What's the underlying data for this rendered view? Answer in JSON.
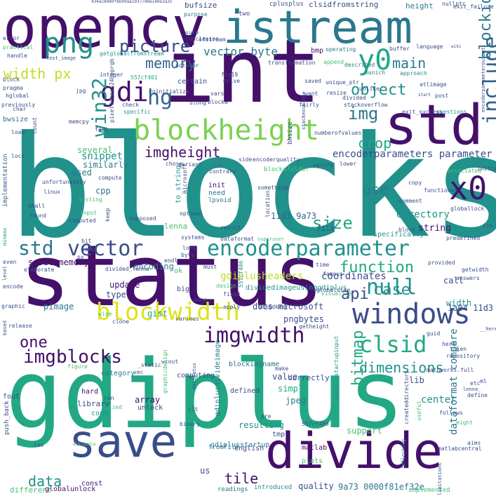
{
  "palette": {
    "purple": "#44106a",
    "indigo": "#3a4d8a",
    "blue": "#33628d",
    "teal_dark": "#2a788e",
    "teal": "#21918c",
    "green_teal": "#22a884",
    "green": "#44bf70",
    "light_green": "#7ad151",
    "yellow_green": "#bddf26",
    "yellow": "#dce319",
    "background": "#ffffff"
  },
  "words": {
    "blocks": "blocks",
    "gdiplus": "gdiplus",
    "status": "status",
    "int": "int",
    "std": "std",
    "opencv": "opencv",
    "istream": "istream",
    "divide": "divide",
    "save": "save",
    "x0": "x0",
    "windows": "windows",
    "png": "png",
    "y0": "y0",
    "gdi": "gdi",
    "hg": "hg",
    "blockheight": "blockheight",
    "blockwidth": "blockwidth",
    "encoderparameter": "encoderparameter",
    "vector": "vector",
    "std2": "std",
    "imgwidth": "imgwidth",
    "imgblocks": "imgblocks",
    "clsid": "clsid",
    "null": "null",
    "function": "function",
    "case": "case",
    "api": "api",
    "win32": "win32",
    "include": "include",
    "blockid": "blockid",
    "img": "img",
    "object": "object",
    "main": "main",
    "memory": "memory",
    "picture": "picture",
    "width_px": "width px",
    "vector_byte": "vector byte",
    "imgheight": "imgheight",
    "crop": "crop",
    "size": "size",
    "use": "use",
    "one": "one",
    "data": "data",
    "alternative": "alternative",
    "tile": "tile",
    "dimensions": "dimensions",
    "bitmap": "bitmap",
    "encoderparameters_parameter": "encoderparameters parameter",
    "directory": "directory",
    "snippet": "snippet",
    "gdiplusheaders": "gdiplusheaders",
    "coordinates": "coordinates",
    "savetomemory": "savetomemory",
    "used": "used",
    "several": "several",
    "cpp": "cpp",
    "similarly": "similarly",
    "init": "init",
    "need": "need",
    "lpvoid": "lpvoid",
    "file": "file",
    "lenna": "lenna",
    "string": "string",
    "encoding": "encoding",
    "update": "update",
    "type": "type",
    "pimage": "pimage",
    "gist": "gist",
    "docs_microsoft": "docs microsoft",
    "pngbytes": "pngbytes",
    "value": "value",
    "call": "call",
    "width": "width",
    "d3": "11d3 9a73",
    "a1004": "1a04 11d3",
    "center": "center",
    "lib": "lib",
    "jpeg": "jpeg",
    "simple": "simple",
    "correctly": "correctly",
    "array": "array",
    "unlock": "unlock",
    "hard": "hard",
    "category": "category",
    "computing": "computing",
    "defined": "defined",
    "blockimgname": "blockimgname",
    "matlab": "matlab",
    "library": "library",
    "cout": "cout",
    "tmp": "tmp",
    "resulting": "resulting",
    "support": "support",
    "english": "english",
    "plots": "plots",
    "quality": "quality",
    "us": "us",
    "const": "const",
    "9a73_0000": "9a73 0000f81ef32e",
    "different": "different",
    "globalunlock": "globalunlock",
    "introduced": "introduced",
    "readings": "readings",
    "fromfile": "fromfile",
    "implemented": "implemented",
    "bufsize": "bufsize",
    "clsidfromstring": "clsidfromstring",
    "height": "height",
    "two": "two",
    "cplusplus": "cplusplus",
    "nullptr": "nullptr",
    "exit_failure": "exit_failure",
    "purpose": "purpose",
    "sure": "sure",
    "conclusion": "conclusion",
    "ofstream": "ofstream",
    "bmp": "bmp",
    "operating": "operating",
    "buffer": "buffer",
    "language": "language",
    "error": "error",
    "practical": "practical",
    "handle": "handle",
    "test_image": "test_image",
    "getglobalfromstream": "getglobalfromstream",
    "october": "october",
    "fig19": "fig19",
    "transformation": "transformation",
    "append": "append",
    "described": "described",
    "munich": "munich",
    "approach": "approach",
    "integer": "integer",
    "hash1": "557cf401",
    "block": "block",
    "pragma": "pragma",
    "jpg": "jpg",
    "coinitialize": "coinitialize",
    "certain": "certain",
    "drive": "drive",
    "saved": "saved",
    "unique_ptr": "unique_ptr",
    "atlimage": "atlimage",
    "post": "post",
    "hglobal": "hglobal",
    "char": "char",
    "ulong": "ulong",
    "previously": "previously",
    "check": "check",
    "specific": "specific",
    "vars": "vars",
    "blockw": "blockw",
    "want": "want",
    "resize": "resize",
    "fairly": "fairly",
    "divided": "divided",
    "stackoverflow": "stackoverflow",
    "questions": "questions",
    "exit_success": "exit_success",
    "bwsize": "bwsize",
    "memcpy": "memcpy",
    "fast": "fast",
    "pixelformat": "pixelformat24bpprgb",
    "bhsize": "bhsize",
    "stackexchange": "stackexchange",
    "numberofvalues": "numberofvalues",
    "load": "load",
    "lock": "lock",
    "implementation": "implementation",
    "linux": "linux",
    "unfortunately": "unfortunately",
    "compute": "compute",
    "variant": "variant",
    "chose": "chose",
    "user": "user",
    "contrary": "contrary",
    "side": "side",
    "encoderquality": "encoderquality",
    "initialize": "initialize",
    "associated": "associated",
    "blocksfolder": "blocksfolder",
    "verify": "verify",
    "lower": "lower",
    "something": "something",
    "location": "location",
    "copy": "copy",
    "functional": "functional",
    "comment": "comment",
    "globallock": "globallock",
    "small": "small",
    "found": "found",
    "testing": "testing",
    "input": "input",
    "computed": "computed",
    "keep": "keep",
    "optimal": "optimal",
    "supposed": "supposed",
    "systems": "systems",
    "result": "result",
    "specifically": "specifically",
    "ios": "ios",
    "predefined": "predefined",
    "bit": "bit",
    "loop": "loop",
    "dataformat": "dataformat",
    "superuser": "superuser",
    "look": "look",
    "byte": "byte",
    "endl": "endl",
    "must": "must",
    "time": "time",
    "provided": "provided",
    "getwidth": "getwidth",
    "answers": "answers",
    "elaborate": "elaborate",
    "even": "even",
    "px": "px",
    "divided_lenna": "divided_lenna",
    "famous": "famous",
    "visualize": "visualize",
    "ok": "ok",
    "dividedimageusinggdiplus": "dividedimageusinggdiplus",
    "globalsize": "globalsize",
    "big": "big",
    "fixed": "fixed",
    "design": "design",
    "done": "done",
    "apply": "apply",
    "sdkddkver": "sdkddkver",
    "wise": "wise",
    "clone": "clone",
    "encode": "encode",
    "graphic": "graphic",
    "release": "release",
    "various": "various",
    "token": "token",
    "guid": "guid",
    "getheight": "getheight",
    "here": "here_",
    "repository": "repository",
    "mathworks_full": "mathworks.full",
    "wcout": "wcout",
    "figure": "figure",
    "static": "_static",
    "vec": "vec",
    "graphicdesign": "graphicdesign",
    "make": "make",
    "define": "define",
    "run": "run",
    "sized": "sized",
    "clt": "clt",
    "binary": "binary",
    "pre": "pre",
    "hash2": "557cf400",
    "follows": "follows",
    "matlabcentral": "matlabcentral",
    "aims": "aims",
    "might": "might",
    "useful": "useful",
    "etc": "etc",
    "dataformat_compare": "dataformat compare",
    "fout": "fout",
    "push_back": "push_back",
    "dividedimage": "dividedimageusinggdiplus",
    "hash_top": "434ac8489f8b99aa10377966140e3a35",
    "encoderparameters_short": "encoderparameters",
    "gdiplusstartup": "gdiplusstartup",
    "divstatus": "divstatus",
    "gdiplusdivideimage": "gdiplusdivideimage",
    "createddirectory": "createddirectory",
    "dividing": "dividing",
    "lenna_": "lenna_",
    "h2": "__here",
    "specifically2": "pixel",
    "limitations": "limitations",
    "encoderparameteroutput": "encoderparameteroutput",
    "reflecting": "reflecting",
    "gdiplusstartupinput": "gdiplusstartupinput",
    "clsid2": "clsid",
    "ml": "ml",
    "les": "les",
    "wikipedia": "wikipedia",
    "based": "based",
    "ttimage": "getstream",
    "level": "level",
    "minmax": "minmax",
    "cpp2": "cpp",
    "to_string": "to_string",
    "microsoft": "microsoft",
    "block_": "block_",
    "blocks_v": "blocks_v",
    "hash3": "557cf406",
    "unlike": "unlike",
    "wiki": "wiki",
    "start": "start",
    "count": "count"
  }
}
